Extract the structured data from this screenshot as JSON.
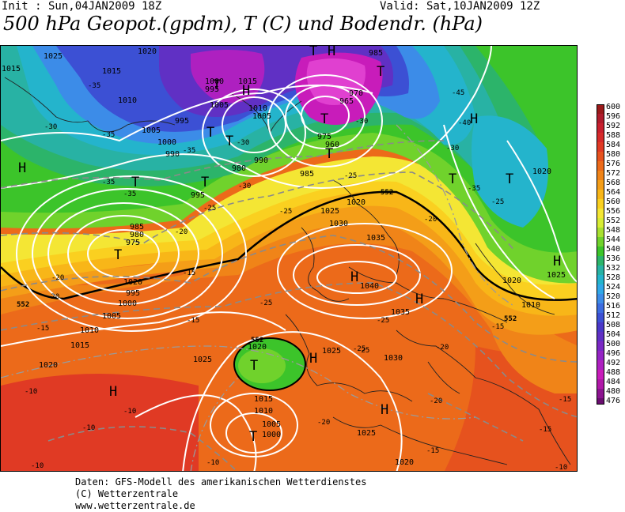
{
  "header": {
    "init": "Init : Sun,04JAN2009 18Z",
    "valid": "Valid: Sat,10JAN2009 12Z",
    "title": "500 hPa Geopot.(gpdm), T (C) und Bodendr. (hPa)"
  },
  "footer": {
    "line1": "Daten: GFS-Modell des amerikanischen Wetterdienstes",
    "line2": "(C) Wetterzentrale",
    "line3": "www.wetterzentrale.de"
  },
  "legend": {
    "labels": [
      "600",
      "596",
      "592",
      "588",
      "584",
      "580",
      "576",
      "572",
      "568",
      "564",
      "560",
      "556",
      "552",
      "548",
      "544",
      "540",
      "536",
      "532",
      "528",
      "524",
      "520",
      "516",
      "512",
      "508",
      "504",
      "500",
      "496",
      "492",
      "488",
      "484",
      "480",
      "476"
    ],
    "colors": [
      "#9a1a1a",
      "#b01c2c",
      "#c8202e",
      "#d62a2a",
      "#e03a24",
      "#e6521e",
      "#ec6a1a",
      "#f08418",
      "#f49e18",
      "#f8b618",
      "#fad020",
      "#f4e634",
      "#d8ec34",
      "#a8e030",
      "#70d22c",
      "#3cc42a",
      "#2cb46a",
      "#28b2a4",
      "#24b4cc",
      "#30a8e8",
      "#3c8ce8",
      "#3c6ce0",
      "#3c50d4",
      "#4a38c8",
      "#6030c4",
      "#7a28c4",
      "#9424c4",
      "#ae20c0",
      "#c81cba",
      "#b018a8",
      "#8c1490",
      "#6a0e70"
    ]
  },
  "map": {
    "pressure_labels": [
      "1025",
      "1020",
      "1015",
      "1010",
      "1005",
      "1000",
      "995",
      "990",
      "985",
      "980",
      "975",
      "1015",
      "1010",
      "1005",
      "1000",
      "995",
      "990",
      "985",
      "980",
      "975",
      "970",
      "965",
      "960",
      "985",
      "1020",
      "1025",
      "1030",
      "1035",
      "1040",
      "1035",
      "1030",
      "1025",
      "1020",
      "1025",
      "1020",
      "1015",
      "1010",
      "1005",
      "1000",
      "995",
      "1020",
      "1015",
      "1020",
      "1020",
      "1025",
      "1010",
      "1005",
      "1015",
      "1010",
      "1005",
      "1000",
      "995",
      "1025",
      "1020"
    ],
    "temp_labels": [
      "-35",
      "-30",
      "-35",
      "-35",
      "-30",
      "-25",
      "-35",
      "-30",
      "-35",
      "-25",
      "-30",
      "-25",
      "-20",
      "-40",
      "-45",
      "-30",
      "-35",
      "-25",
      "-20",
      "-25",
      "-25",
      "-20",
      "-15",
      "-15",
      "-20",
      "-20",
      "-25",
      "-15",
      "-10",
      "-10",
      "-10",
      "-10",
      "-15",
      "-20",
      "-15",
      "-15",
      "-10",
      "-10",
      "-20",
      "-25",
      "-15"
    ],
    "height_labels": [
      "552",
      "552",
      "552",
      "552",
      "552"
    ],
    "high_labels": [
      "H",
      "H",
      "H",
      "H",
      "H",
      "H",
      "H",
      "H",
      "H",
      "H"
    ],
    "low_labels": [
      "T",
      "T",
      "T",
      "T",
      "T",
      "T",
      "T",
      "T",
      "T",
      "T",
      "T",
      "T",
      "T"
    ]
  }
}
